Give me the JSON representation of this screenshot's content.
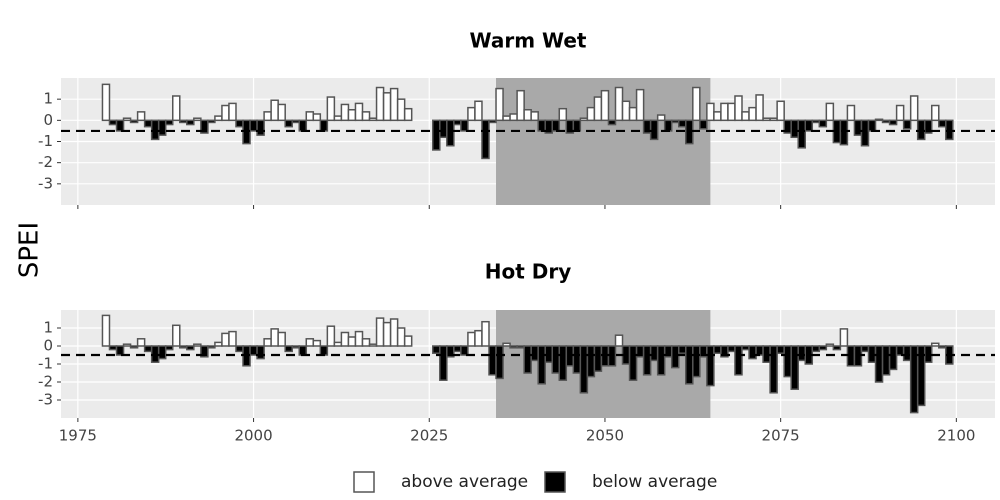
{
  "ylabel": "SPEI",
  "legend": [
    {
      "name": "above average",
      "color": "#ffffff"
    },
    {
      "name": "below average",
      "color": "#000000"
    }
  ],
  "chart_data": [
    {
      "type": "bar",
      "title": "Warm Wet",
      "x": [
        1979,
        1980,
        1981,
        1982,
        1983,
        1984,
        1985,
        1986,
        1987,
        1988,
        1989,
        1990,
        1991,
        1992,
        1993,
        1994,
        1995,
        1996,
        1997,
        1998,
        1999,
        2000,
        2001,
        2002,
        2003,
        2004,
        2005,
        2006,
        2007,
        2008,
        2009,
        2010,
        2011,
        2012,
        2013,
        2014,
        2015,
        2016,
        2017,
        2018,
        2019,
        2020,
        2021,
        2022,
        2026,
        2027,
        2028,
        2029,
        2030,
        2031,
        2032,
        2033,
        2034,
        2035,
        2036,
        2037,
        2038,
        2039,
        2040,
        2041,
        2042,
        2043,
        2044,
        2045,
        2046,
        2047,
        2048,
        2049,
        2050,
        2051,
        2052,
        2053,
        2054,
        2055,
        2056,
        2057,
        2058,
        2059,
        2060,
        2061,
        2062,
        2063,
        2064,
        2065,
        2066,
        2067,
        2068,
        2069,
        2070,
        2071,
        2072,
        2073,
        2074,
        2075,
        2076,
        2077,
        2078,
        2079,
        2080,
        2081,
        2082,
        2083,
        2084,
        2085,
        2086,
        2087,
        2088,
        2089,
        2090,
        2091,
        2092,
        2093,
        2094,
        2095,
        2096,
        2097,
        2098,
        2099
      ],
      "values": [
        1.7,
        -0.2,
        -0.5,
        0.1,
        -0.1,
        0.4,
        -0.3,
        -0.9,
        -0.7,
        -0.2,
        1.15,
        -0.1,
        -0.2,
        0.1,
        -0.6,
        -0.1,
        0.2,
        0.7,
        0.8,
        -0.3,
        -1.1,
        -0.5,
        -0.7,
        0.4,
        0.95,
        0.75,
        -0.3,
        -0.1,
        -0.5,
        0.4,
        0.3,
        -0.5,
        1.1,
        0.2,
        0.75,
        0.5,
        0.8,
        0.4,
        0.1,
        1.55,
        1.3,
        1.5,
        1.0,
        0.55,
        -1.4,
        -0.8,
        -1.2,
        -0.2,
        -0.5,
        0.6,
        0.9,
        -1.8,
        -0.1,
        1.5,
        0.2,
        0.3,
        1.4,
        0.5,
        0.4,
        -0.5,
        -0.6,
        -0.5,
        0.55,
        -0.6,
        -0.5,
        0.1,
        0.6,
        1.1,
        1.4,
        -0.2,
        1.55,
        0.9,
        0.6,
        1.45,
        -0.6,
        -0.9,
        0.25,
        -0.5,
        -0.1,
        -0.3,
        -1.1,
        1.55,
        -0.4,
        0.8,
        0.4,
        0.8,
        0.8,
        1.15,
        0.4,
        0.6,
        1.2,
        0.1,
        0.1,
        0.9,
        -0.6,
        -0.8,
        -1.3,
        -0.5,
        -0.1,
        -0.3,
        0.8,
        -1.05,
        -1.15,
        0.7,
        -0.7,
        -1.2,
        -0.5,
        0.05,
        -0.1,
        -0.2,
        0.7,
        -0.4,
        1.15,
        -0.9,
        -0.6,
        0.7,
        -0.3,
        -0.9
      ],
      "xlim": [
        1972.6,
        2105.5
      ],
      "ylim": [
        -4,
        2
      ],
      "yticks": [
        1,
        0,
        -1,
        -2,
        -3
      ],
      "xticks": [
        1975,
        2000,
        2025,
        2050,
        2075,
        2100
      ],
      "shade": [
        2034.5,
        2065
      ],
      "hline": -0.5
    },
    {
      "type": "bar",
      "title": "Hot Dry",
      "x": [
        1979,
        1980,
        1981,
        1982,
        1983,
        1984,
        1985,
        1986,
        1987,
        1988,
        1989,
        1990,
        1991,
        1992,
        1993,
        1994,
        1995,
        1996,
        1997,
        1998,
        1999,
        2000,
        2001,
        2002,
        2003,
        2004,
        2005,
        2006,
        2007,
        2008,
        2009,
        2010,
        2011,
        2012,
        2013,
        2014,
        2015,
        2016,
        2017,
        2018,
        2019,
        2020,
        2021,
        2022,
        2026,
        2027,
        2028,
        2029,
        2030,
        2031,
        2032,
        2033,
        2034,
        2035,
        2036,
        2037,
        2038,
        2039,
        2040,
        2041,
        2042,
        2043,
        2044,
        2045,
        2046,
        2047,
        2048,
        2049,
        2050,
        2051,
        2052,
        2053,
        2054,
        2055,
        2056,
        2057,
        2058,
        2059,
        2060,
        2061,
        2062,
        2063,
        2064,
        2065,
        2066,
        2067,
        2068,
        2069,
        2070,
        2071,
        2072,
        2073,
        2074,
        2075,
        2076,
        2077,
        2078,
        2079,
        2080,
        2081,
        2082,
        2083,
        2084,
        2085,
        2086,
        2087,
        2088,
        2089,
        2090,
        2091,
        2092,
        2093,
        2094,
        2095,
        2096,
        2097,
        2098,
        2099
      ],
      "values": [
        1.7,
        -0.2,
        -0.5,
        0.1,
        -0.1,
        0.4,
        -0.3,
        -0.9,
        -0.7,
        -0.2,
        1.15,
        -0.1,
        -0.2,
        0.1,
        -0.6,
        -0.1,
        0.2,
        0.7,
        0.8,
        -0.3,
        -1.1,
        -0.5,
        -0.7,
        0.4,
        0.95,
        0.75,
        -0.3,
        -0.1,
        -0.5,
        0.4,
        0.3,
        -0.5,
        1.1,
        0.2,
        0.75,
        0.5,
        0.8,
        0.4,
        0.1,
        1.55,
        1.3,
        1.5,
        1.0,
        0.55,
        -0.4,
        -1.9,
        -0.6,
        -0.3,
        -0.5,
        0.75,
        0.85,
        1.35,
        -1.6,
        -1.8,
        0.15,
        -0.1,
        -0.1,
        -1.5,
        -0.8,
        -2.1,
        -0.9,
        -1.5,
        -1.9,
        -1.1,
        -1.5,
        -2.6,
        -1.7,
        -1.4,
        -1.1,
        -1.1,
        0.6,
        -1.0,
        -1.9,
        -0.6,
        -1.6,
        -0.8,
        -1.6,
        -0.6,
        -1.2,
        -0.4,
        -2.1,
        -1.7,
        -0.6,
        -2.2,
        -0.4,
        -0.6,
        -0.3,
        -1.6,
        -0.2,
        -0.7,
        -0.5,
        -0.9,
        -2.6,
        -0.4,
        -1.7,
        -2.4,
        -0.8,
        -1.0,
        -0.3,
        -0.2,
        0.1,
        -0.2,
        0.95,
        -1.1,
        -1.1,
        -0.3,
        -0.9,
        -2.0,
        -1.6,
        -1.3,
        -0.5,
        -0.8,
        -3.7,
        -3.3,
        -0.9,
        0.15,
        -0.1,
        -1.0
      ],
      "xlim": [
        1972.6,
        2105.5
      ],
      "ylim": [
        -4,
        2
      ],
      "yticks": [
        1,
        0,
        -1,
        -2,
        -3
      ],
      "xticks": [
        1975,
        2000,
        2025,
        2050,
        2075,
        2100
      ],
      "shade": [
        2034.5,
        2065
      ],
      "hline": -0.5
    }
  ]
}
